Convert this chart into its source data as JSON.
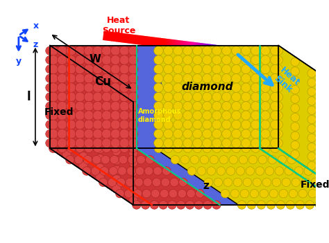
{
  "bg_color": "#ffffff",
  "cu_color": "#cc3333",
  "cu_atom_face": "#dd4444",
  "cu_atom_edge": "#aa2222",
  "diamond_color": "#ddcc00",
  "diamond_atom_face": "#eecc00",
  "diamond_atom_edge": "#aa9900",
  "amorphous_color": "#5566dd",
  "amorphous_edge": "#2233aa",
  "fixed_line_color": "#ff2200",
  "fixed_diamond_color": "#00cc88",
  "heat_sink_color": "#22aaff",
  "axis_color": "#1144ff",
  "text_fixed_left": "Fixed",
  "text_fixed_right": "Fixed",
  "text_cu": "Cu",
  "text_diamond": "diamond",
  "text_amorphous": "Amorphous\ndiamond",
  "text_heat_source": "Heat\nSource",
  "text_heat_sink": "Heat\nSink",
  "text_z": "z",
  "text_l": "l",
  "text_w": "W",
  "label_fontsize": 10,
  "small_fontsize": 8
}
